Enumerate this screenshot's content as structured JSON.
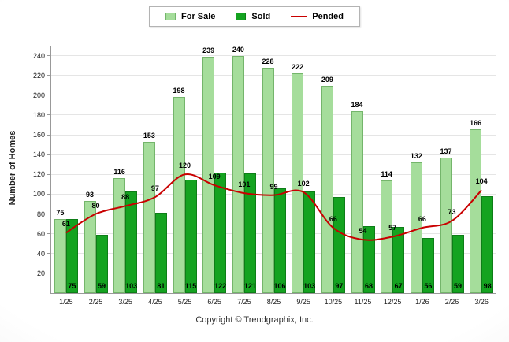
{
  "legend": {
    "for_sale": "For Sale",
    "sold": "Sold",
    "pended": "Pended"
  },
  "footer": "Copyright © Trendgraphix, Inc.",
  "colors": {
    "for_sale": "#a5dd9b",
    "for_sale_border": "#74b56b",
    "sold": "#14a320",
    "sold_border": "#0e7d18",
    "pended": "#c90000",
    "axis": "#999999",
    "grid": "#e5e5e5"
  },
  "chart_data": {
    "type": "bar",
    "title": "",
    "xlabel": "",
    "ylabel": "Number of Homes",
    "ylim": [
      0,
      250
    ],
    "yticks": [
      20,
      40,
      60,
      80,
      100,
      120,
      140,
      160,
      180,
      200,
      220,
      240
    ],
    "grid": true,
    "legend_position": "top",
    "categories": [
      "1/25",
      "2/25",
      "3/25",
      "4/25",
      "5/25",
      "6/25",
      "7/25",
      "8/25",
      "9/25",
      "10/25",
      "11/25",
      "12/25",
      "1/26",
      "2/26",
      "3/26"
    ],
    "series": [
      {
        "name": "For Sale",
        "type": "bar",
        "color": "#a5dd9b",
        "values": [
          75,
          93,
          116,
          153,
          198,
          239,
          240,
          228,
          222,
          209,
          184,
          114,
          132,
          137,
          166
        ]
      },
      {
        "name": "Sold",
        "type": "bar",
        "color": "#14a320",
        "values": [
          75,
          59,
          103,
          81,
          115,
          122,
          121,
          106,
          103,
          97,
          68,
          67,
          56,
          59,
          98
        ]
      },
      {
        "name": "Pended",
        "type": "line",
        "color": "#c90000",
        "values": [
          61,
          80,
          88,
          97,
          120,
          109,
          101,
          99,
          102,
          66,
          54,
          57,
          66,
          73,
          104
        ]
      }
    ]
  }
}
